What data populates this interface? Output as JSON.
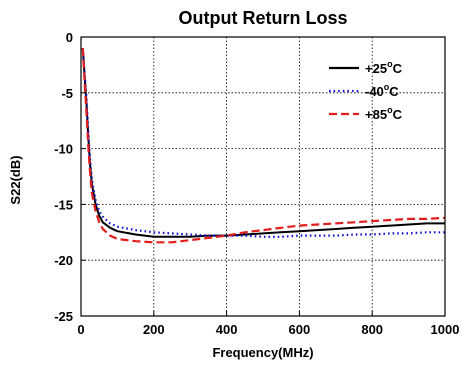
{
  "chart_data": {
    "type": "line",
    "title": "Output Return Loss",
    "xlabel": "Frequency(MHz)",
    "ylabel": "S22(dB)",
    "xlim": [
      0,
      1000
    ],
    "ylim": [
      -25,
      0
    ],
    "xticks": [
      0,
      200,
      400,
      600,
      800,
      1000
    ],
    "yticks": [
      0,
      -5,
      -10,
      -15,
      -20,
      -25
    ],
    "grid": true,
    "legend_position": "top-right",
    "series": [
      {
        "name": "+25",
        "unit": "oC",
        "color": "#000000",
        "style": "solid",
        "x": [
          5,
          10,
          15,
          20,
          25,
          30,
          40,
          50,
          60,
          80,
          100,
          150,
          200,
          250,
          300,
          350,
          400,
          450,
          500,
          550,
          600,
          650,
          700,
          750,
          800,
          850,
          900,
          950,
          1000
        ],
        "y": [
          -1,
          -3.5,
          -6,
          -9,
          -11.5,
          -13.2,
          -15,
          -16,
          -16.6,
          -17.1,
          -17.4,
          -17.7,
          -17.9,
          -17.9,
          -17.9,
          -17.8,
          -17.8,
          -17.7,
          -17.6,
          -17.5,
          -17.4,
          -17.3,
          -17.2,
          -17.1,
          -17.0,
          -16.9,
          -16.8,
          -16.7,
          -16.7
        ]
      },
      {
        "name": "-40",
        "unit": "oC",
        "color": "#1414d6",
        "style": "dotted",
        "x": [
          5,
          10,
          15,
          20,
          25,
          30,
          40,
          50,
          60,
          80,
          100,
          150,
          200,
          250,
          300,
          350,
          400,
          450,
          500,
          550,
          600,
          650,
          700,
          750,
          800,
          850,
          900,
          950,
          1000
        ],
        "y": [
          -1,
          -3.2,
          -5.5,
          -8.5,
          -11,
          -12.8,
          -14.6,
          -15.6,
          -16.1,
          -16.7,
          -17.0,
          -17.3,
          -17.5,
          -17.6,
          -17.7,
          -17.8,
          -17.8,
          -17.8,
          -17.9,
          -17.9,
          -17.8,
          -17.8,
          -17.8,
          -17.7,
          -17.7,
          -17.6,
          -17.6,
          -17.5,
          -17.5
        ]
      },
      {
        "name": "+85",
        "unit": "oC",
        "color": "#e41c1c",
        "style": "dashed",
        "x": [
          5,
          10,
          15,
          20,
          25,
          30,
          40,
          50,
          60,
          80,
          100,
          150,
          200,
          250,
          300,
          350,
          400,
          450,
          500,
          550,
          600,
          650,
          700,
          750,
          800,
          850,
          900,
          950,
          1000
        ],
        "y": [
          -1,
          -4,
          -6.8,
          -9.8,
          -12.2,
          -14,
          -15.6,
          -16.6,
          -17.2,
          -17.8,
          -18.1,
          -18.3,
          -18.4,
          -18.4,
          -18.2,
          -18.0,
          -17.8,
          -17.5,
          -17.3,
          -17.1,
          -16.9,
          -16.8,
          -16.7,
          -16.6,
          -16.5,
          -16.4,
          -16.3,
          -16.3,
          -16.2
        ]
      }
    ]
  }
}
